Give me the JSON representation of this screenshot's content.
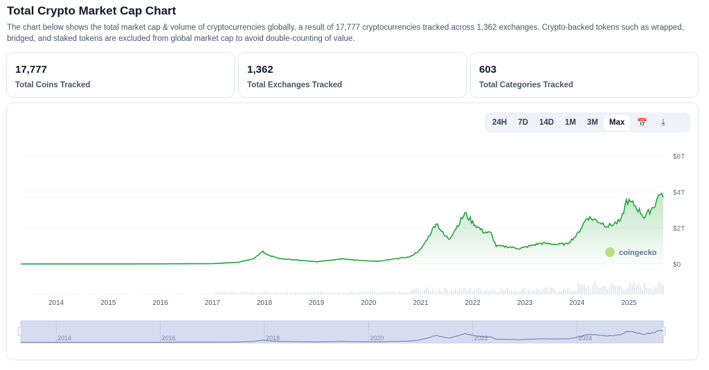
{
  "header": {
    "title": "Total Crypto Market Cap Chart",
    "description": "The chart below shows the total market cap & volume of cryptocurrencies globally, a result of 17,777 cryptocurrencies tracked across 1,362 exchanges. Crypto-backed tokens such as wrapped, bridged, and staked tokens are excluded from global market cap to avoid double-counting of value."
  },
  "stats": [
    {
      "value": "17,777",
      "label": "Total Coins Tracked"
    },
    {
      "value": "1,362",
      "label": "Total Exchanges Tracked"
    },
    {
      "value": "603",
      "label": "Total Categories Tracked"
    }
  ],
  "range_tabs": [
    "24H",
    "7D",
    "14D",
    "1M",
    "3M",
    "Max"
  ],
  "selected_range": "Max",
  "icons": [
    "calendar-icon",
    "download-icon"
  ],
  "watermark": "coingecko",
  "colors": {
    "line": "#22a33a",
    "navigator": "#d6ddf0",
    "navigator_line": "#6b7a99"
  },
  "chart_data": {
    "type": "area",
    "xlabel": "",
    "ylabel": "",
    "x_ticks": [
      "2014",
      "2015",
      "2016",
      "2017",
      "2018",
      "2019",
      "2020",
      "2021",
      "2022",
      "2023",
      "2024",
      "2025"
    ],
    "y_ticks": [
      "$0",
      "$2T",
      "$4T",
      "$6T"
    ],
    "ylim": [
      0,
      6
    ],
    "xlim": [
      2013.32,
      2025.66
    ],
    "grid": true,
    "navigator_ticks": [
      "2014",
      "2016",
      "2018",
      "2020",
      "2022",
      "2024"
    ],
    "series": [
      {
        "unit": "trillion USD",
        "points": [
          [
            2013.32,
            0.002
          ],
          [
            2015.5,
            0.005
          ],
          [
            2017.0,
            0.018
          ],
          [
            2017.5,
            0.1
          ],
          [
            2017.8,
            0.3
          ],
          [
            2017.97,
            0.7
          ],
          [
            2018.1,
            0.45
          ],
          [
            2018.3,
            0.3
          ],
          [
            2018.7,
            0.2
          ],
          [
            2019.0,
            0.12
          ],
          [
            2019.5,
            0.3
          ],
          [
            2019.8,
            0.2
          ],
          [
            2020.2,
            0.15
          ],
          [
            2020.5,
            0.28
          ],
          [
            2020.8,
            0.4
          ],
          [
            2021.0,
            0.8
          ],
          [
            2021.15,
            1.5
          ],
          [
            2021.3,
            2.3
          ],
          [
            2021.45,
            1.6
          ],
          [
            2021.55,
            1.4
          ],
          [
            2021.7,
            2.1
          ],
          [
            2021.85,
            2.8
          ],
          [
            2022.0,
            2.3
          ],
          [
            2022.2,
            1.8
          ],
          [
            2022.35,
            1.7
          ],
          [
            2022.45,
            1.0
          ],
          [
            2022.7,
            0.95
          ],
          [
            2022.9,
            0.85
          ],
          [
            2023.1,
            1.0
          ],
          [
            2023.3,
            1.15
          ],
          [
            2023.6,
            1.1
          ],
          [
            2023.8,
            1.1
          ],
          [
            2024.0,
            1.6
          ],
          [
            2024.2,
            2.6
          ],
          [
            2024.4,
            2.4
          ],
          [
            2024.6,
            2.1
          ],
          [
            2024.85,
            2.4
          ],
          [
            2024.95,
            3.5
          ],
          [
            2025.1,
            3.3
          ],
          [
            2025.3,
            2.6
          ],
          [
            2025.5,
            3.3
          ],
          [
            2025.6,
            4.0
          ],
          [
            2025.66,
            3.7
          ]
        ]
      }
    ]
  }
}
